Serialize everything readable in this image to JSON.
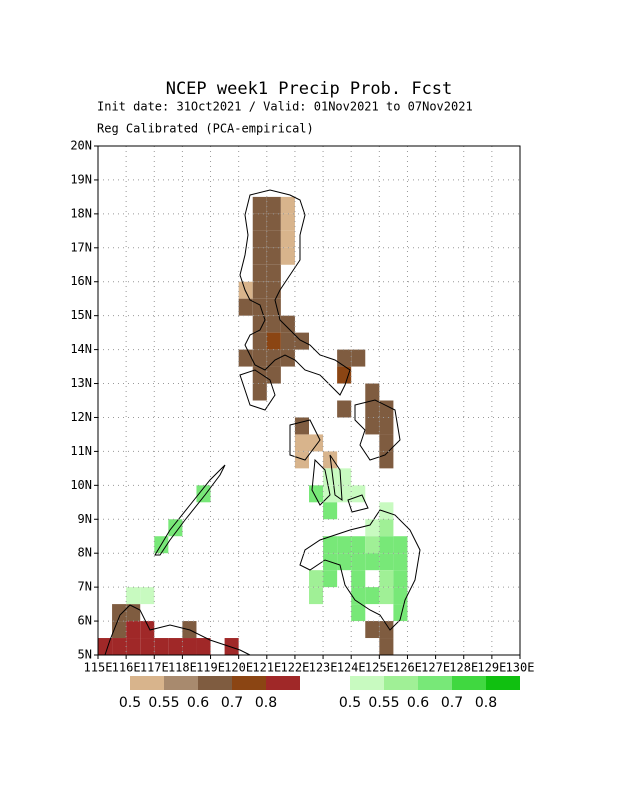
{
  "chart_data": {
    "type": "map",
    "title": "NCEP week1 Precip Prob. Fcst",
    "subtitle": "Init date: 31Oct2021 / Valid: 01Nov2021 to 07Nov2021",
    "note": "Reg Calibrated (PCA-empirical)",
    "xlim": [
      115,
      130
    ],
    "ylim": [
      5,
      20
    ],
    "xticks": [
      {
        "value": 115,
        "label": "115E"
      },
      {
        "value": 116,
        "label": "116E"
      },
      {
        "value": 117,
        "label": "117E"
      },
      {
        "value": 118,
        "label": "118E"
      },
      {
        "value": 119,
        "label": "119E"
      },
      {
        "value": 120,
        "label": "120E"
      },
      {
        "value": 121,
        "label": "121E"
      },
      {
        "value": 122,
        "label": "122E"
      },
      {
        "value": 123,
        "label": "123E"
      },
      {
        "value": 124,
        "label": "124E"
      },
      {
        "value": 125,
        "label": "125E"
      },
      {
        "value": 126,
        "label": "126E"
      },
      {
        "value": 127,
        "label": "127E"
      },
      {
        "value": 128,
        "label": "128E"
      },
      {
        "value": 129,
        "label": "129E"
      },
      {
        "value": 130,
        "label": "130E"
      }
    ],
    "yticks": [
      {
        "value": 5,
        "label": "5N"
      },
      {
        "value": 6,
        "label": "6N"
      },
      {
        "value": 7,
        "label": "7N"
      },
      {
        "value": 8,
        "label": "8N"
      },
      {
        "value": 9,
        "label": "9N"
      },
      {
        "value": 10,
        "label": "10N"
      },
      {
        "value": 11,
        "label": "11N"
      },
      {
        "value": 12,
        "label": "12N"
      },
      {
        "value": 13,
        "label": "13N"
      },
      {
        "value": 14,
        "label": "14N"
      },
      {
        "value": 15,
        "label": "15N"
      },
      {
        "value": 16,
        "label": "16N"
      },
      {
        "value": 17,
        "label": "17N"
      },
      {
        "value": 18,
        "label": "18N"
      },
      {
        "value": 19,
        "label": "19N"
      },
      {
        "value": 20,
        "label": "20N"
      }
    ],
    "grid": true,
    "cell_size": 0.5,
    "series": [
      {
        "levels": [
          0.5,
          0.55,
          0.6,
          0.7,
          0.8
        ],
        "colors": [
          "#d8b48c",
          "#a88a6e",
          "#7f5c40",
          "#8b4513",
          "#a02828"
        ],
        "lon": [
          120.5,
          121.0,
          121.5,
          120.5,
          121.0,
          121.5,
          120.5,
          121.0,
          121.5,
          120.5,
          121.0,
          121.5,
          120.5,
          121.0,
          120.0,
          120.5,
          121.0,
          120.0,
          120.5,
          121.0,
          120.5,
          121.0,
          121.5,
          120.5,
          121.0,
          121.5,
          122.0,
          120.0,
          120.5,
          121.0,
          121.5,
          123.5,
          124.0,
          120.5,
          121.0,
          123.5,
          120.5,
          124.5,
          123.5,
          124.5,
          125.0,
          122.0,
          124.5,
          125.0,
          122.0,
          122.5,
          125.0,
          122.0,
          123.0,
          125.0,
          124.5,
          125.0,
          125.0,
          115.5,
          116.0,
          115.5,
          116.0,
          116.5,
          118.0,
          115.0,
          115.5,
          116.0,
          116.5,
          117.0,
          117.5,
          118.0,
          118.5,
          119.5
        ],
        "lat": [
          18.0,
          18.0,
          18.0,
          17.5,
          17.5,
          17.5,
          17.0,
          17.0,
          17.0,
          16.5,
          16.5,
          16.5,
          16.0,
          16.0,
          15.5,
          15.5,
          15.5,
          15.0,
          15.0,
          15.0,
          14.5,
          14.5,
          14.5,
          14.0,
          14.0,
          14.0,
          14.0,
          13.5,
          13.5,
          13.5,
          13.5,
          13.5,
          13.5,
          13.0,
          13.0,
          13.0,
          12.5,
          12.5,
          12.0,
          12.0,
          12.0,
          11.5,
          11.5,
          11.5,
          11.0,
          11.0,
          11.0,
          10.5,
          10.5,
          10.5,
          5.5,
          5.5,
          5.0,
          6.0,
          6.0,
          5.5,
          5.5,
          5.5,
          5.5,
          5.0,
          5.0,
          5.0,
          5.0,
          5.0,
          5.0,
          5.0,
          5.0,
          5.0
        ],
        "values": [
          0.6,
          0.6,
          0.5,
          0.6,
          0.6,
          0.5,
          0.6,
          0.6,
          0.5,
          0.6,
          0.6,
          0.5,
          0.6,
          0.6,
          0.5,
          0.6,
          0.6,
          0.6,
          0.6,
          0.6,
          0.6,
          0.6,
          0.6,
          0.6,
          0.7,
          0.6,
          0.6,
          0.6,
          0.6,
          0.6,
          0.6,
          0.6,
          0.6,
          0.6,
          0.6,
          0.7,
          0.6,
          0.6,
          0.6,
          0.6,
          0.6,
          0.6,
          0.6,
          0.6,
          0.5,
          0.5,
          0.6,
          0.5,
          0.5,
          0.6,
          0.6,
          0.6,
          0.6,
          0.6,
          0.6,
          0.6,
          0.8,
          0.8,
          0.6,
          0.8,
          0.8,
          0.8,
          0.8,
          0.8,
          0.8,
          0.8,
          0.8,
          0.8
        ]
      },
      {
        "levels": [
          0.5,
          0.55,
          0.6,
          0.7,
          0.8
        ],
        "colors": [
          "#c8fac0",
          "#a0f096",
          "#78e878",
          "#40d840",
          "#10c010"
        ],
        "lon": [
          123.0,
          123.5,
          122.5,
          123.0,
          123.5,
          124.0,
          123.0,
          125.0,
          124.5,
          125.0,
          123.0,
          123.5,
          124.0,
          124.5,
          125.0,
          125.5,
          123.0,
          123.5,
          124.0,
          124.5,
          125.0,
          125.5,
          122.5,
          123.0,
          124.0,
          125.0,
          125.5,
          122.5,
          124.0,
          124.5,
          125.0,
          125.5,
          124.0,
          125.5,
          118.5,
          117.5,
          117.0,
          116.0,
          116.5
        ],
        "lat": [
          10.0,
          10.0,
          9.5,
          9.5,
          9.5,
          9.5,
          9.0,
          9.0,
          8.5,
          8.5,
          8.0,
          8.0,
          8.0,
          8.0,
          8.0,
          8.0,
          7.5,
          7.5,
          7.5,
          7.5,
          7.5,
          7.5,
          7.0,
          7.0,
          7.0,
          7.0,
          7.0,
          6.5,
          6.5,
          6.5,
          6.5,
          6.5,
          6.0,
          6.0,
          9.5,
          8.5,
          8.0,
          6.5,
          6.5
        ],
        "values": [
          0.5,
          0.5,
          0.6,
          0.5,
          0.5,
          0.5,
          0.6,
          0.5,
          0.5,
          0.55,
          0.6,
          0.6,
          0.6,
          0.55,
          0.6,
          0.6,
          0.6,
          0.6,
          0.6,
          0.6,
          0.6,
          0.6,
          0.55,
          0.6,
          0.6,
          0.55,
          0.6,
          0.55,
          0.6,
          0.6,
          0.55,
          0.6,
          0.6,
          0.6,
          0.6,
          0.6,
          0.6,
          0.5,
          0.5
        ]
      }
    ]
  }
}
